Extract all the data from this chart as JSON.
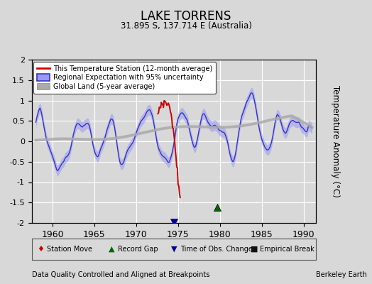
{
  "title": "LAKE TORRENS",
  "subtitle": "31.895 S, 137.714 E (Australia)",
  "xlabel_left": "Data Quality Controlled and Aligned at Breakpoints",
  "xlabel_right": "Berkeley Earth",
  "ylabel": "Temperature Anomaly (°C)",
  "xlim": [
    1957.5,
    1991.5
  ],
  "ylim": [
    -2,
    2
  ],
  "yticks": [
    -2,
    -1.5,
    -1,
    -0.5,
    0,
    0.5,
    1,
    1.5,
    2
  ],
  "xticks": [
    1960,
    1965,
    1970,
    1975,
    1980,
    1985,
    1990
  ],
  "background_color": "#d8d8d8",
  "plot_bg_color": "#d8d8d8",
  "grid_color": "#ffffff",
  "regional_color": "#3333cc",
  "regional_fill_color": "#9999ee",
  "station_color": "#cc0000",
  "global_color": "#aaaaaa",
  "marker_station_move_color": "#cc0000",
  "marker_record_gap_color": "#006600",
  "marker_time_obs_color": "#000099",
  "marker_empirical_color": "#111111",
  "time_obs_change_x": 1974.5,
  "record_gap_x": 1979.7,
  "record_gap_y": -1.62
}
